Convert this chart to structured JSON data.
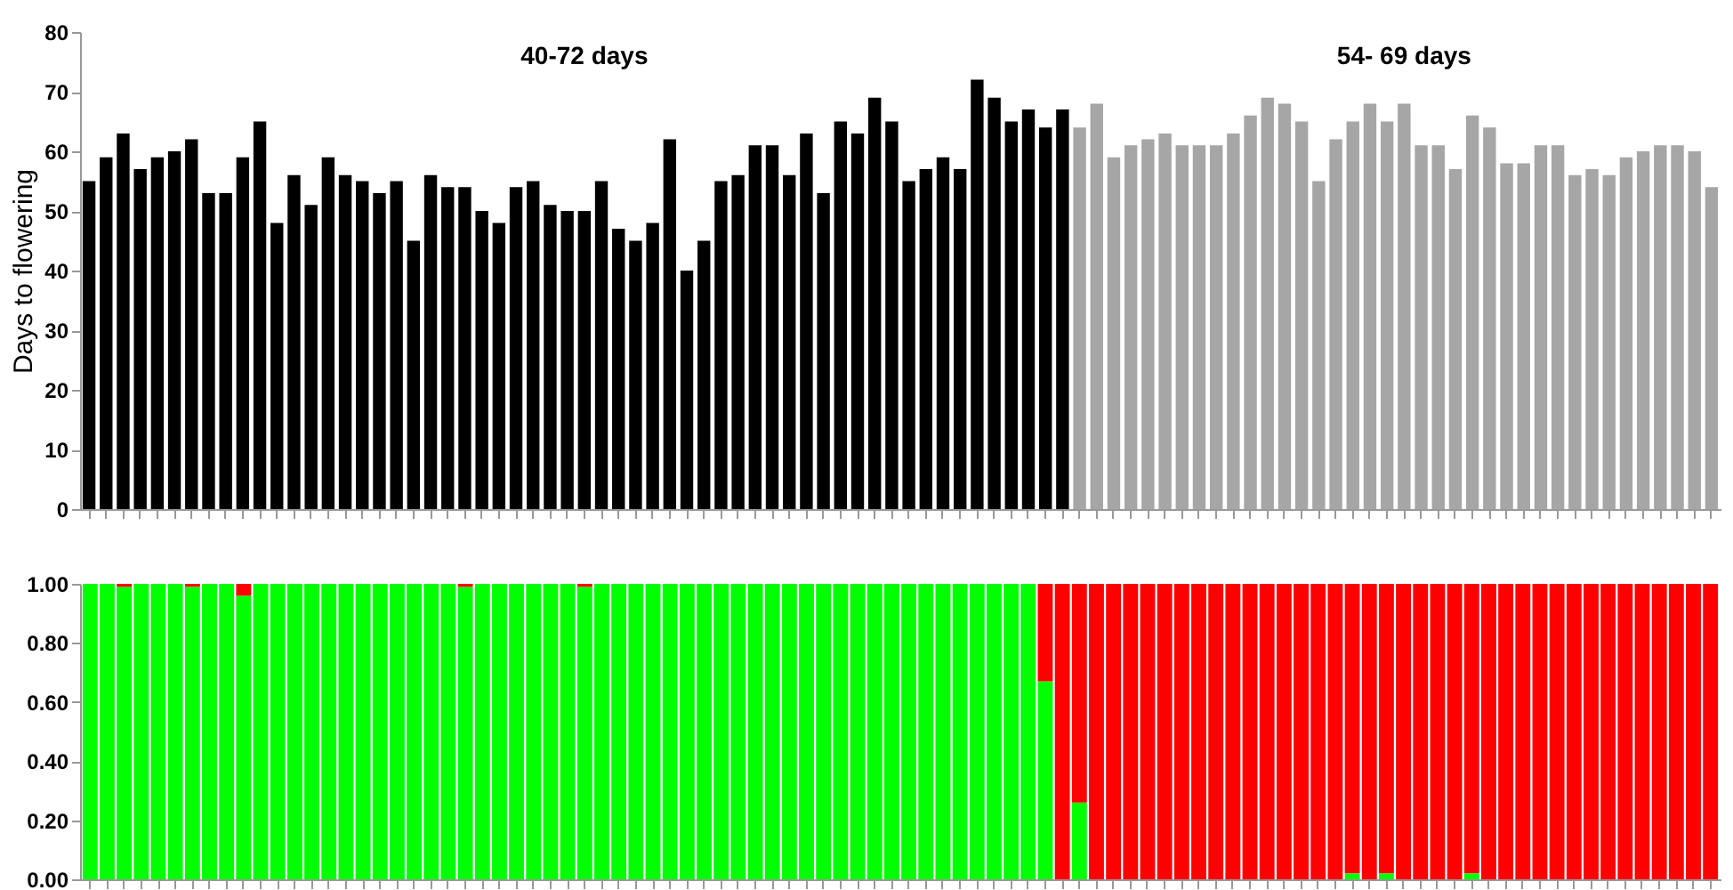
{
  "chart_data": [
    {
      "type": "bar",
      "ylabel": "Days to flowering",
      "categories": [
        null,
        null,
        null,
        null,
        null,
        null,
        null,
        null,
        null,
        null,
        null,
        null,
        null,
        null,
        null,
        null,
        null,
        null,
        null,
        null,
        null,
        null,
        null,
        null,
        null,
        null,
        null,
        null,
        null,
        null,
        null,
        null,
        null,
        null,
        null,
        null,
        null,
        null,
        null,
        null,
        null,
        null,
        null,
        null,
        null,
        null,
        null,
        null,
        null,
        null,
        null,
        null,
        null,
        null,
        null,
        null,
        null,
        null,
        null,
        null,
        null,
        null,
        null,
        null,
        null,
        null,
        null,
        null,
        null,
        null,
        null,
        null,
        null,
        null,
        null,
        null,
        null,
        null,
        null,
        null,
        null,
        null,
        null,
        null,
        null,
        null,
        null,
        null,
        null,
        null,
        null,
        null,
        null,
        null,
        null,
        null
      ],
      "values": [
        55,
        59,
        63,
        57,
        59,
        60,
        62,
        53,
        53,
        59,
        65,
        48,
        56,
        51,
        59,
        56,
        55,
        53,
        55,
        45,
        56,
        54,
        54,
        50,
        48,
        54,
        55,
        51,
        50,
        50,
        55,
        47,
        45,
        48,
        62,
        40,
        45,
        55,
        56,
        61,
        61,
        56,
        63,
        53,
        65,
        63,
        69,
        65,
        55,
        57,
        59,
        57,
        72,
        69,
        65,
        67,
        64,
        67,
        64,
        68,
        59,
        61,
        62,
        63,
        61,
        61,
        61,
        63,
        66,
        69,
        68,
        65,
        55,
        62,
        65,
        68,
        65,
        68,
        61,
        61,
        57,
        66,
        64,
        58,
        58,
        61,
        61,
        56,
        57,
        56,
        59,
        60,
        61,
        61,
        60,
        54
      ],
      "colors": [
        "#000000",
        "#000000",
        "#000000",
        "#000000",
        "#000000",
        "#000000",
        "#000000",
        "#000000",
        "#000000",
        "#000000",
        "#000000",
        "#000000",
        "#000000",
        "#000000",
        "#000000",
        "#000000",
        "#000000",
        "#000000",
        "#000000",
        "#000000",
        "#000000",
        "#000000",
        "#000000",
        "#000000",
        "#000000",
        "#000000",
        "#000000",
        "#000000",
        "#000000",
        "#000000",
        "#000000",
        "#000000",
        "#000000",
        "#000000",
        "#000000",
        "#000000",
        "#000000",
        "#000000",
        "#000000",
        "#000000",
        "#000000",
        "#000000",
        "#000000",
        "#000000",
        "#000000",
        "#000000",
        "#000000",
        "#000000",
        "#000000",
        "#000000",
        "#000000",
        "#000000",
        "#000000",
        "#000000",
        "#000000",
        "#000000",
        "#000000",
        "#000000",
        "#a6a6a6",
        "#a6a6a6",
        "#a6a6a6",
        "#a6a6a6",
        "#a6a6a6",
        "#a6a6a6",
        "#a6a6a6",
        "#a6a6a6",
        "#a6a6a6",
        "#a6a6a6",
        "#a6a6a6",
        "#a6a6a6",
        "#a6a6a6",
        "#a6a6a6",
        "#a6a6a6",
        "#a6a6a6",
        "#a6a6a6",
        "#a6a6a6",
        "#a6a6a6",
        "#a6a6a6",
        "#a6a6a6",
        "#a6a6a6",
        "#a6a6a6",
        "#a6a6a6",
        "#a6a6a6",
        "#a6a6a6",
        "#a6a6a6",
        "#a6a6a6",
        "#a6a6a6",
        "#a6a6a6",
        "#a6a6a6",
        "#a6a6a6",
        "#a6a6a6",
        "#a6a6a6",
        "#a6a6a6",
        "#a6a6a6",
        "#a6a6a6",
        "#a6a6a6"
      ],
      "annotations": [
        "40-72 days",
        "54- 69 days"
      ],
      "ylim": [
        0,
        80
      ],
      "yticks": [
        0,
        10,
        20,
        30,
        40,
        50,
        60,
        70,
        80
      ],
      "tick_labels": "y",
      "grid": false
    },
    {
      "type": "bar",
      "stacked": true,
      "categories": [
        null,
        null,
        null,
        null,
        null,
        null,
        null,
        null,
        null,
        null,
        null,
        null,
        null,
        null,
        null,
        null,
        null,
        null,
        null,
        null,
        null,
        null,
        null,
        null,
        null,
        null,
        null,
        null,
        null,
        null,
        null,
        null,
        null,
        null,
        null,
        null,
        null,
        null,
        null,
        null,
        null,
        null,
        null,
        null,
        null,
        null,
        null,
        null,
        null,
        null,
        null,
        null,
        null,
        null,
        null,
        null,
        null,
        null,
        null,
        null,
        null,
        null,
        null,
        null,
        null,
        null,
        null,
        null,
        null,
        null,
        null,
        null,
        null,
        null,
        null,
        null,
        null,
        null,
        null,
        null,
        null,
        null,
        null,
        null,
        null,
        null,
        null,
        null,
        null,
        null,
        null,
        null,
        null,
        null,
        null,
        null
      ],
      "series": [
        {
          "color": "#00ff00",
          "values": [
            1,
            1,
            0.99,
            1,
            1,
            1,
            0.99,
            1,
            1,
            0.96,
            1,
            1,
            1,
            1,
            1,
            1,
            1,
            1,
            1,
            1,
            1,
            1,
            0.99,
            1,
            1,
            1,
            1,
            1,
            1,
            0.99,
            1,
            1,
            1,
            1,
            1,
            1,
            1,
            1,
            1,
            1,
            1,
            1,
            1,
            1,
            1,
            1,
            1,
            1,
            1,
            1,
            1,
            1,
            1,
            1,
            1,
            1,
            0.67,
            0,
            0.26,
            0,
            0,
            0,
            0,
            0,
            0,
            0,
            0,
            0,
            0,
            0,
            0,
            0,
            0,
            0,
            0.02,
            0,
            0.02,
            0,
            0,
            0,
            0,
            0.02,
            0,
            0,
            0,
            0,
            0,
            0,
            0,
            0,
            0,
            0,
            0,
            0,
            0,
            0
          ]
        },
        {
          "color": "#ff0000",
          "values": [
            0,
            0,
            0.01,
            0,
            0,
            0,
            0.01,
            0,
            0,
            0.04,
            0,
            0,
            0,
            0,
            0,
            0,
            0,
            0,
            0,
            0,
            0,
            0,
            0.01,
            0,
            0,
            0,
            0,
            0,
            0,
            0.01,
            0,
            0,
            0,
            0,
            0,
            0,
            0,
            0,
            0,
            0,
            0,
            0,
            0,
            0,
            0,
            0,
            0,
            0,
            0,
            0,
            0,
            0,
            0,
            0,
            0,
            0,
            0.33,
            1,
            0.74,
            1,
            1,
            1,
            1,
            1,
            1,
            1,
            1,
            1,
            1,
            1,
            1,
            1,
            1,
            1,
            0.98,
            1,
            0.98,
            1,
            1,
            1,
            1,
            0.98,
            1,
            1,
            1,
            1,
            1,
            1,
            1,
            1,
            1,
            1,
            1,
            1,
            1,
            1
          ]
        }
      ],
      "ylim": [
        0,
        1
      ],
      "yticks": [
        {
          "value": 0,
          "label": "0.00"
        },
        {
          "value": 0.2,
          "label": "0.20"
        },
        {
          "value": 0.4,
          "label": "0.40"
        },
        {
          "value": 0.6,
          "label": "0.60"
        },
        {
          "value": 0.8,
          "label": "0.80"
        },
        {
          "value": 1,
          "label": "1.00"
        }
      ],
      "tick_labels": "y",
      "grid": false
    }
  ]
}
